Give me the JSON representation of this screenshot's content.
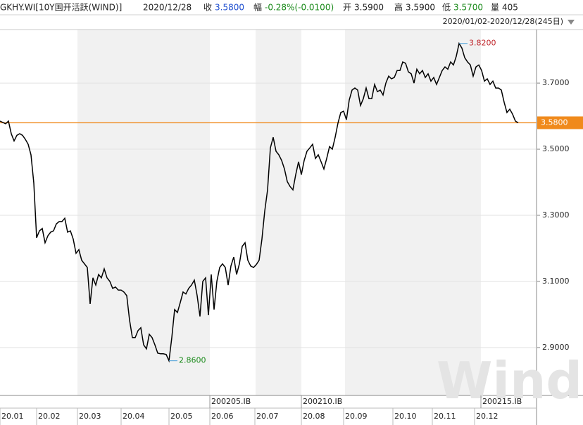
{
  "header": {
    "title": "GKHY.WI[10Y国开活跃(WIND)]",
    "date": "2020/12/28",
    "quote": [
      {
        "label": "收",
        "value": "3.5800",
        "color": "#1f4fd0"
      },
      {
        "label": "幅",
        "value": "-0.28%(-0.0100)",
        "color": "#1a8a1a"
      },
      {
        "label": "开",
        "value": "3.5900",
        "color": "#222222"
      },
      {
        "label": "高",
        "value": "3.5900",
        "color": "#222222"
      },
      {
        "label": "低",
        "value": "3.5700",
        "color": "#1a8a1a"
      },
      {
        "label": "量",
        "value": "405",
        "color": "#222222"
      }
    ],
    "range": "2020/01/02-2020/12/28(245日)"
  },
  "chart_data": {
    "type": "line",
    "color": "#000000",
    "watermark": "Wind",
    "values": [
      3.585,
      3.581,
      3.577,
      3.585,
      3.547,
      3.525,
      3.542,
      3.547,
      3.542,
      3.53,
      3.515,
      3.483,
      3.398,
      3.232,
      3.253,
      3.26,
      3.217,
      3.238,
      3.249,
      3.253,
      3.274,
      3.281,
      3.281,
      3.291,
      3.249,
      3.253,
      3.228,
      3.185,
      3.196,
      3.164,
      3.153,
      3.142,
      3.032,
      3.111,
      3.089,
      3.121,
      3.111,
      3.138,
      3.111,
      3.1,
      3.079,
      3.083,
      3.074,
      3.074,
      3.068,
      3.057,
      2.983,
      2.93,
      2.93,
      2.951,
      2.96,
      2.908,
      2.896,
      2.94,
      2.93,
      2.908,
      2.883,
      2.881,
      2.881,
      2.879,
      2.86,
      2.93,
      3.015,
      3.006,
      3.036,
      3.068,
      3.062,
      3.079,
      3.089,
      3.104,
      3.057,
      2.994,
      3.1,
      3.111,
      2.998,
      3.121,
      3.015,
      3.1,
      3.142,
      3.153,
      3.142,
      3.089,
      3.147,
      3.174,
      3.121,
      3.153,
      3.206,
      3.217,
      3.164,
      3.147,
      3.142,
      3.151,
      3.164,
      3.228,
      3.313,
      3.377,
      3.504,
      3.536,
      3.494,
      3.483,
      3.466,
      3.44,
      3.402,
      3.387,
      3.377,
      3.423,
      3.462,
      3.423,
      3.466,
      3.494,
      3.504,
      3.515,
      3.472,
      3.483,
      3.462,
      3.44,
      3.472,
      3.508,
      3.5,
      3.536,
      3.579,
      3.611,
      3.615,
      3.589,
      3.649,
      3.679,
      3.685,
      3.679,
      3.632,
      3.653,
      3.685,
      3.653,
      3.653,
      3.696,
      3.674,
      3.679,
      3.664,
      3.7,
      3.721,
      3.713,
      3.717,
      3.738,
      3.738,
      3.764,
      3.76,
      3.734,
      3.728,
      3.7,
      3.742,
      3.728,
      3.738,
      3.717,
      3.728,
      3.706,
      3.717,
      3.696,
      3.717,
      3.738,
      3.749,
      3.742,
      3.764,
      3.755,
      3.781,
      3.82,
      3.806,
      3.777,
      3.764,
      3.755,
      3.721,
      3.749,
      3.755,
      3.738,
      3.706,
      3.713,
      3.696,
      3.706,
      3.685,
      3.685,
      3.679,
      3.642,
      3.611,
      3.621,
      3.606,
      3.585,
      3.58
    ],
    "xlim": [
      0,
      190.5
    ],
    "ylim": [
      2.755,
      3.862
    ],
    "xticks": [
      {
        "value": 0,
        "label": "20.01"
      },
      {
        "value": 13,
        "label": "20.02"
      },
      {
        "value": 27.5,
        "label": "20.03"
      },
      {
        "value": 43,
        "label": "20.04"
      },
      {
        "value": 60,
        "label": "20.05"
      },
      {
        "value": 74.5,
        "label": "20.06"
      },
      {
        "value": 90.5,
        "label": "20.07"
      },
      {
        "value": 107,
        "label": "20.08"
      },
      {
        "value": 122,
        "label": "20.09"
      },
      {
        "value": 139.5,
        "label": "20.10"
      },
      {
        "value": 153.5,
        "label": "20.11"
      },
      {
        "value": 168.5,
        "label": "20.12"
      }
    ],
    "yticks": [
      {
        "value": 2.9,
        "label": "2.9000"
      },
      {
        "value": 3.1,
        "label": "3.1000"
      },
      {
        "value": 3.3,
        "label": "3.3000"
      },
      {
        "value": 3.5,
        "label": "3.5000"
      },
      {
        "value": 3.7,
        "label": "3.7000"
      }
    ],
    "reference": {
      "value": 3.58,
      "label": "3.5800",
      "color": "#f08a1c"
    },
    "annotations": [
      {
        "index": 163,
        "label": "3.8200",
        "color": "#c0282d"
      },
      {
        "index": 60,
        "label": "2.8600",
        "color": "#1a8a1a"
      }
    ],
    "markers": [
      {
        "x": 74.5,
        "label": "200205.IB"
      },
      {
        "x": 107,
        "label": "200210.IB"
      },
      {
        "x": 170.75,
        "label": "200215.IB"
      }
    ]
  }
}
